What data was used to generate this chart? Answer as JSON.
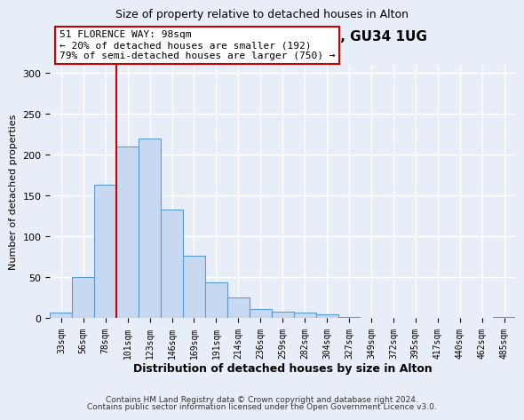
{
  "title": "51, FLORENCE WAY, ALTON, GU34 1UG",
  "subtitle": "Size of property relative to detached houses in Alton",
  "xlabel": "Distribution of detached houses by size in Alton",
  "ylabel": "Number of detached properties",
  "bar_labels": [
    "33sqm",
    "56sqm",
    "78sqm",
    "101sqm",
    "123sqm",
    "146sqm",
    "169sqm",
    "191sqm",
    "214sqm",
    "236sqm",
    "259sqm",
    "282sqm",
    "304sqm",
    "327sqm",
    "349sqm",
    "372sqm",
    "395sqm",
    "417sqm",
    "440sqm",
    "462sqm",
    "485sqm"
  ],
  "bar_values": [
    7,
    50,
    163,
    210,
    220,
    133,
    76,
    44,
    25,
    11,
    8,
    7,
    5,
    2,
    0,
    0,
    0,
    0,
    0,
    0,
    2
  ],
  "bar_color": "#c6d9f1",
  "bar_edge_color": "#5b9bd5",
  "ylim": [
    0,
    310
  ],
  "yticks": [
    0,
    50,
    100,
    150,
    200,
    250,
    300
  ],
  "vline_x_index": 3,
  "vline_color": "#cc0000",
  "annotation_title": "51 FLORENCE WAY: 98sqm",
  "annotation_line1": "← 20% of detached houses are smaller (192)",
  "annotation_line2": "79% of semi-detached houses are larger (750) →",
  "annotation_box_color": "#ffffff",
  "annotation_box_edge": "#cc0000",
  "footer1": "Contains HM Land Registry data © Crown copyright and database right 2024.",
  "footer2": "Contains public sector information licensed under the Open Government Licence v3.0.",
  "bg_color": "#e8eef7",
  "plot_bg_color": "#e8eef7",
  "grid_color": "#ffffff"
}
